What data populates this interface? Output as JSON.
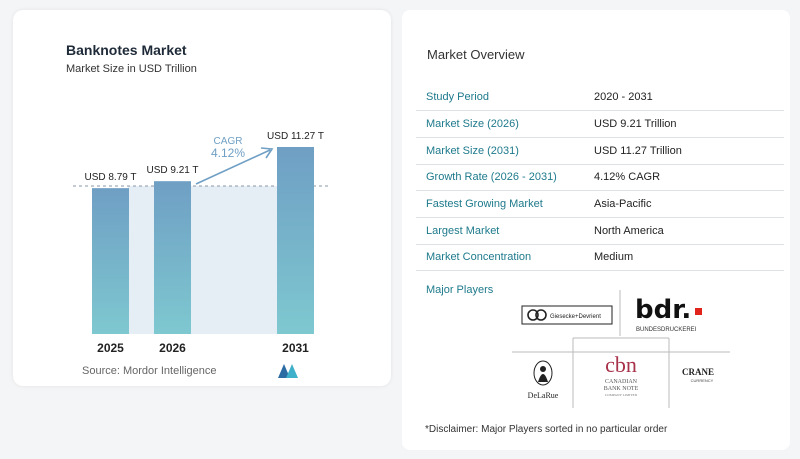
{
  "chart": {
    "title": "Banknotes Market",
    "subtitle": "Market Size in USD Trillion",
    "source": "Source:  Mordor Intelligence",
    "cagr_label": "CAGR",
    "cagr_value": "4.12%"
  },
  "chart_data": {
    "type": "bar",
    "title": "Banknotes Market",
    "subtitle": "Market Size in USD Trillion",
    "categories": [
      "2025",
      "2026",
      "2031"
    ],
    "values": [
      8.79,
      9.21,
      11.27
    ],
    "data_labels": [
      "USD 8.79 T",
      "USD 9.21 T",
      "USD 11.27 T"
    ],
    "annotation": "CAGR 4.12%",
    "grid": false
  },
  "overview": {
    "title": "Market Overview",
    "rows": [
      {
        "key": "Study Period",
        "value": "2020 - 2031"
      },
      {
        "key": "Market Size (2026)",
        "value": "USD 9.21 Trillion"
      },
      {
        "key": "Market Size (2031)",
        "value": "USD 11.27 Trillion"
      },
      {
        "key": "Growth Rate (2026 - 2031)",
        "value": "4.12% CAGR"
      },
      {
        "key": "Fastest Growing Market",
        "value": "Asia-Pacific"
      },
      {
        "key": "Largest Market",
        "value": "North America"
      },
      {
        "key": "Market Concentration",
        "value": "Medium"
      }
    ]
  },
  "players": {
    "title": "Major Players",
    "gd": "Giesecke+Devrient",
    "bdr": "bdr.",
    "bdr_sub": "BUNDESDRUCKEREI",
    "cbn": "cbn",
    "cbn_line1": "CANADIAN",
    "cbn_line2": "BANK NOTE",
    "cbn_line3": "COMPANY LIMITED",
    "delarue": "DeLaRue",
    "crane": "CRANE",
    "crane_sub": "CURRENCY"
  },
  "disclaimer": "*Disclaimer: Major Players sorted in no particular order",
  "colors": {
    "bar_top": "#6f9fc4",
    "bar_bottom": "#7ec8d0",
    "accent": "#1e7a8c",
    "arrow": "#6f9fc4"
  }
}
